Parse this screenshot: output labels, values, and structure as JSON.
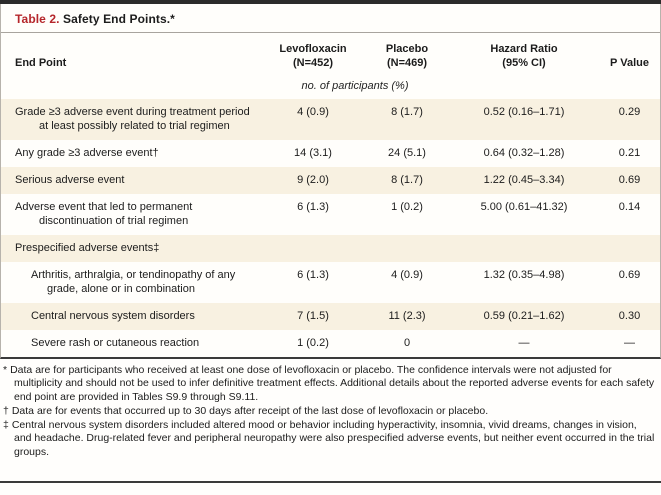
{
  "title": {
    "prefix": "Table 2.",
    "rest": "Safety End Points.*"
  },
  "columns": {
    "endpoint": "End Point",
    "levofloxacin_line1": "Levofloxacin",
    "levofloxacin_line2": "(N=452)",
    "placebo_line1": "Placebo",
    "placebo_line2": "(N=469)",
    "hazard_line1": "Hazard Ratio",
    "hazard_line2": "(95% CI)",
    "pvalue": "P Value"
  },
  "units_subheader": "no. of participants (%)",
  "rows": [
    {
      "label": "Grade ≥3 adverse event during treatment period at least possibly related to trial regimen",
      "levo": "4 (0.9)",
      "placebo": "8 (1.7)",
      "hr": "0.52 (0.16–1.71)",
      "p": "0.29"
    },
    {
      "label": "Any grade ≥3 adverse event†",
      "levo": "14 (3.1)",
      "placebo": "24 (5.1)",
      "hr": "0.64 (0.32–1.28)",
      "p": "0.21"
    },
    {
      "label": "Serious adverse event",
      "levo": "9 (2.0)",
      "placebo": "8 (1.7)",
      "hr": "1.22 (0.45–3.34)",
      "p": "0.69"
    },
    {
      "label": "Adverse event that led to permanent discontinuation of trial regimen",
      "levo": "6 (1.3)",
      "placebo": "1 (0.2)",
      "hr": "5.00 (0.61–41.32)",
      "p": "0.14"
    },
    {
      "label": "Prespecified adverse events‡",
      "levo": "",
      "placebo": "",
      "hr": "",
      "p": ""
    },
    {
      "label": "Arthritis, arthralgia, or tendinopathy of any grade, alone or in combination",
      "levo": "6 (1.3)",
      "placebo": "4 (0.9)",
      "hr": "1.32 (0.35–4.98)",
      "p": "0.69"
    },
    {
      "label": "Central nervous system disorders",
      "levo": "7 (1.5)",
      "placebo": "11 (2.3)",
      "hr": "0.59 (0.21–1.62)",
      "p": "0.30"
    },
    {
      "label": "Severe rash or cutaneous reaction",
      "levo": "1 (0.2)",
      "placebo": "0",
      "hr": "—",
      "p": "—"
    }
  ],
  "footnotes": [
    {
      "marker": "*",
      "text": "Data are for participants who received at least one dose of levofloxacin or placebo. The confidence intervals were not adjusted for multiplicity and should not be used to infer definitive treatment effects. Additional details about the reported adverse events for each safety end point are provided in Tables S9.9 through S9.11."
    },
    {
      "marker": "†",
      "text": "Data are for events that occurred up to 30 days after receipt of the last dose of levofloxacin or placebo."
    },
    {
      "marker": "‡",
      "text": "Central nervous system disorders included altered mood or behavior including hyperactivity, insomnia, vivid dreams, changes in vision, and headache. Drug-related fever and peripheral neuropathy were also prespecified adverse events, but neither event occurred in the trial groups."
    }
  ],
  "colors": {
    "accent_red": "#b5262b",
    "row_shade": "#f8f1e1",
    "rule_dark": "#3a3a3a",
    "rule_gray": "#a8a49e"
  }
}
